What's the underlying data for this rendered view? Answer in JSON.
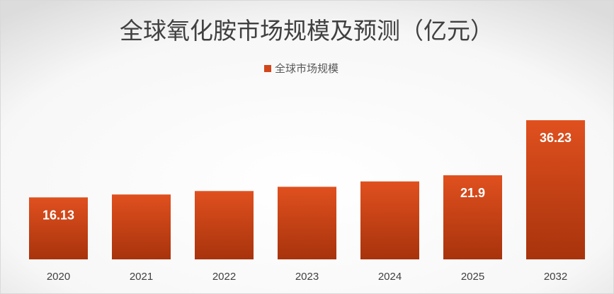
{
  "chart_data": {
    "type": "bar",
    "title": "全球氧化胺市场规模及预测（亿元）",
    "categories": [
      "2020",
      "2021",
      "2022",
      "2023",
      "2024",
      "2025",
      "2032"
    ],
    "series": [
      {
        "name": "全球市场规模",
        "values": [
          16.13,
          16.9,
          17.8,
          18.9,
          20.3,
          21.9,
          36.23
        ],
        "data_labels": [
          "16.13",
          "",
          "",
          "",
          "",
          "21.9",
          "36.23"
        ]
      }
    ],
    "ylim": [
      0,
      46
    ],
    "legend": "top",
    "grid": false,
    "colors": {
      "bar_top": "#E0501F",
      "bar_bottom": "#A8330C",
      "border": "#D9D9D9"
    }
  }
}
